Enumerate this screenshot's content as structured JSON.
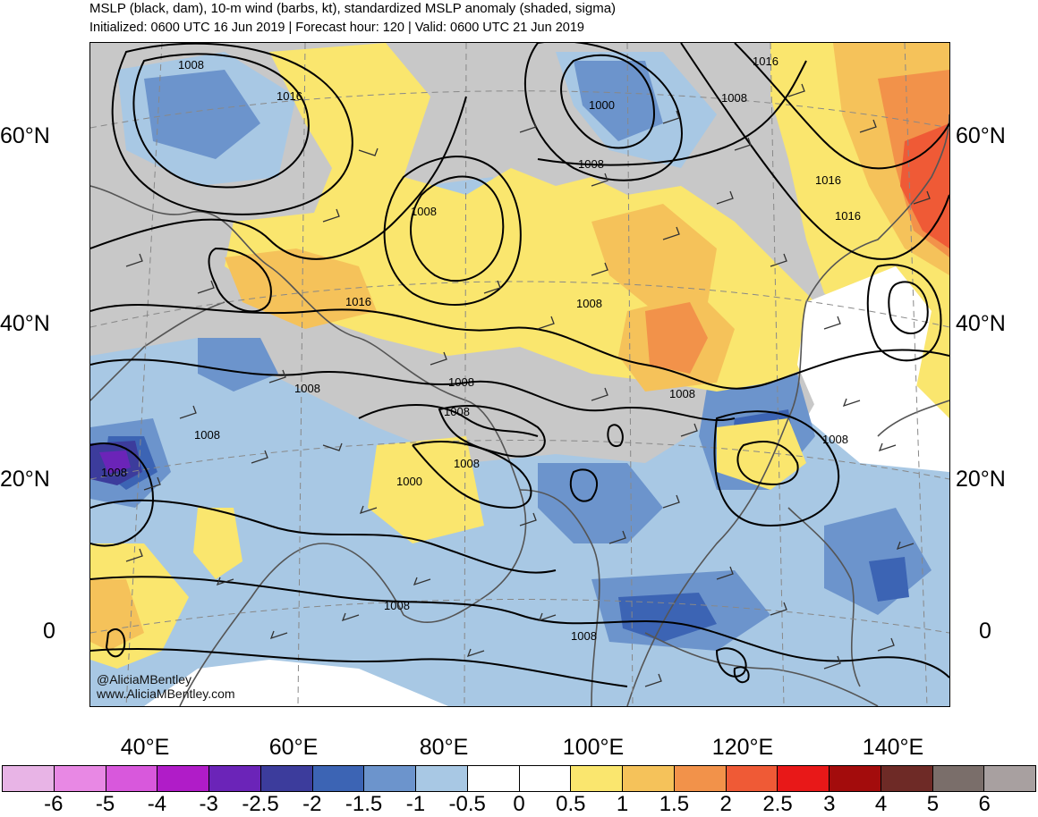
{
  "title_line1": "MSLP (black, dam), 10-m wind (barbs, kt), standardized MSLP anomaly (shaded, sigma)",
  "title_line2": "Initialized: 0600 UTC 16 Jun 2019 | Forecast hour: 120 | Valid: 0600 UTC 21 Jun 2019",
  "lat_labels": [
    "60°N",
    "40°N",
    "20°N",
    "0"
  ],
  "lon_labels": [
    "40°E",
    "60°E",
    "80°E",
    "100°E",
    "120°E",
    "140°E"
  ],
  "credits": [
    "@AliciaMBentley",
    "www.AliciaMBentley.com"
  ],
  "isobar_labels": [
    "1008",
    "1016",
    "1000",
    "1008",
    "1016",
    "1008",
    "1016",
    "1016",
    "1008",
    "1016",
    "1008",
    "1008",
    "1008",
    "1008",
    "1008",
    "1008",
    "1000",
    "1008",
    "1008",
    "1008",
    "1008",
    "1008"
  ],
  "colorbar": {
    "labels": [
      "-6",
      "-5",
      "-4",
      "-3",
      "-2.5",
      "-2",
      "-1.5",
      "-1",
      "-0.5",
      "0",
      "0.5",
      "1",
      "1.5",
      "2",
      "2.5",
      "3",
      "4",
      "5",
      "6"
    ],
    "colors": [
      "#e8b4e6",
      "#e888e4",
      "#d858dc",
      "#b01cc8",
      "#6b24b8",
      "#3c3c9c",
      "#3c64b4",
      "#6c94cc",
      "#a8c8e4",
      "#ffffff",
      "#ffffff",
      "#fae66e",
      "#f5c25a",
      "#f2924a",
      "#ef5a36",
      "#e81818",
      "#a30c0c",
      "#6e2a26",
      "#7a6e6a",
      "#a8a0a0"
    ]
  },
  "colors": {
    "land_neutral": "#c8c8c8",
    "coast": "#555555",
    "isobar": "#000000"
  }
}
